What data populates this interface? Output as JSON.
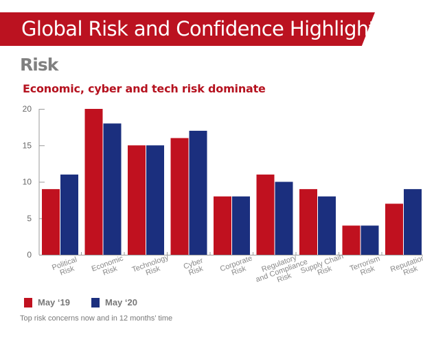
{
  "header": {
    "title": "Global Risk and Confidence Highlights"
  },
  "section": {
    "title": "Risk"
  },
  "chart_data": {
    "type": "bar",
    "title": "Economic, cyber and tech risk dominate",
    "caption": "Top risk concerns now and in 12 months’ time",
    "categories": [
      "Political Risk",
      "Economic Risk",
      "Technology Risk",
      "Cyber Risk",
      "Corporate Risk",
      "Regulatory and Compliance Risk",
      "Supply Chain Risk",
      "Terrorism Risk",
      "Reputation Risk"
    ],
    "category_lines": [
      [
        "Political",
        "Risk"
      ],
      [
        "Economic",
        "Risk"
      ],
      [
        "Technology",
        "Risk"
      ],
      [
        "Cyber",
        "Risk"
      ],
      [
        "Corporate",
        "Risk"
      ],
      [
        "Regulatory",
        "and Compliance",
        "Risk"
      ],
      [
        "Supply Chain",
        "Risk"
      ],
      [
        "Terrorism",
        "Risk"
      ],
      [
        "Reputation",
        "Risk"
      ]
    ],
    "series": [
      {
        "name": "May ‘19",
        "color": "#c0111f",
        "values": [
          9,
          20,
          15,
          16,
          8,
          11,
          9,
          4,
          7
        ]
      },
      {
        "name": "May ‘20",
        "color": "#1b2f7e",
        "values": [
          11,
          18,
          15,
          17,
          8,
          10,
          8,
          4,
          9
        ]
      }
    ],
    "yticks": [
      0,
      5,
      10,
      15,
      20
    ],
    "ylim": [
      0,
      20
    ],
    "legend_position": "bottom-left",
    "grid": false
  }
}
